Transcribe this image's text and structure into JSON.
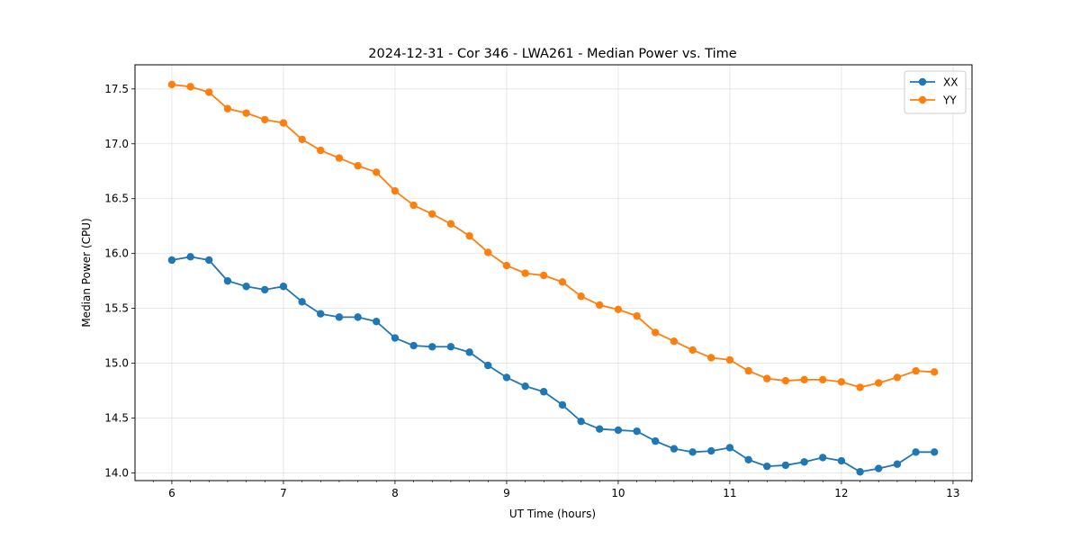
{
  "chart_data": {
    "type": "line",
    "title": "2024-12-31 - Cor 346 - LWA261 - Median Power vs. Time",
    "xlabel": "UT Time (hours)",
    "ylabel": "Median Power (CPU)",
    "xlim": [
      5.67,
      13.17
    ],
    "ylim": [
      13.93,
      17.72
    ],
    "xticks": [
      6,
      7,
      8,
      9,
      10,
      11,
      12,
      13
    ],
    "xtick_labels": [
      "6",
      "7",
      "8",
      "9",
      "10",
      "11",
      "12",
      "13"
    ],
    "yticks": [
      14.0,
      14.5,
      15.0,
      15.5,
      16.0,
      16.5,
      17.0,
      17.5
    ],
    "ytick_labels": [
      "14.0",
      "14.5",
      "15.0",
      "15.5",
      "16.0",
      "16.5",
      "17.0",
      "17.5"
    ],
    "grid": true,
    "legend_position": "top-right",
    "x": [
      6.0,
      6.167,
      6.333,
      6.5,
      6.667,
      6.833,
      7.0,
      7.167,
      7.333,
      7.5,
      7.667,
      7.833,
      8.0,
      8.167,
      8.333,
      8.5,
      8.667,
      8.833,
      9.0,
      9.167,
      9.333,
      9.5,
      9.667,
      9.833,
      10.0,
      10.167,
      10.333,
      10.5,
      10.667,
      10.833,
      11.0,
      11.167,
      11.333,
      11.5,
      11.667,
      11.833,
      12.0,
      12.167,
      12.333,
      12.5,
      12.667,
      12.833
    ],
    "series": [
      {
        "name": "XX",
        "color": "#1f77b4",
        "values": [
          15.94,
          15.97,
          15.94,
          15.75,
          15.7,
          15.67,
          15.7,
          15.56,
          15.45,
          15.42,
          15.42,
          15.38,
          15.23,
          15.16,
          15.15,
          15.15,
          15.1,
          14.98,
          14.87,
          14.79,
          14.74,
          14.62,
          14.47,
          14.4,
          14.39,
          14.38,
          14.29,
          14.22,
          14.19,
          14.2,
          14.23,
          14.12,
          14.06,
          14.07,
          14.1,
          14.14,
          14.11,
          14.01,
          14.04,
          14.08,
          14.19,
          14.19
        ]
      },
      {
        "name": "YY",
        "color": "#ff7f0e",
        "values": [
          17.54,
          17.52,
          17.47,
          17.32,
          17.28,
          17.22,
          17.19,
          17.04,
          16.94,
          16.87,
          16.8,
          16.74,
          16.57,
          16.44,
          16.36,
          16.27,
          16.16,
          16.01,
          15.89,
          15.82,
          15.8,
          15.74,
          15.61,
          15.53,
          15.49,
          15.43,
          15.28,
          15.2,
          15.12,
          15.05,
          15.03,
          14.93,
          14.86,
          14.84,
          14.85,
          14.85,
          14.83,
          14.78,
          14.82,
          14.87,
          14.93,
          14.92
        ]
      }
    ]
  }
}
